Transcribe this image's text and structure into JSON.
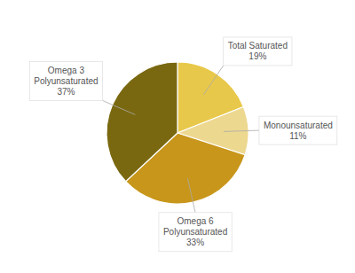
{
  "chart_data": {
    "type": "pie",
    "categories": [
      "Total Saturated",
      "Monounsaturated",
      "Omega 6\nPolyunsaturated",
      "Omega 3\nPolyunsaturated"
    ],
    "values": [
      19,
      11,
      33,
      37
    ],
    "value_labels": [
      "19%",
      "11%",
      "33%",
      "37%"
    ],
    "colors": [
      "#E8C84A",
      "#EDD890",
      "#C8961A",
      "#7A6810"
    ],
    "data_labels": true
  }
}
